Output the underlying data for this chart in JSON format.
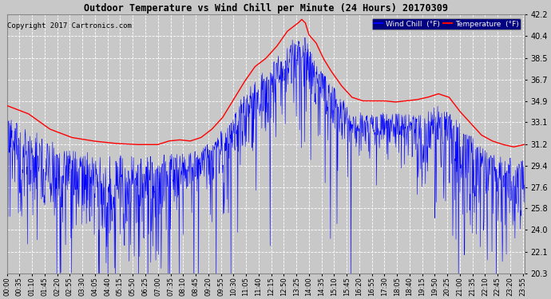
{
  "title": "Outdoor Temperature vs Wind Chill per Minute (24 Hours) 20170309",
  "copyright": "Copyright 2017 Cartronics.com",
  "legend_labels": [
    "Wind Chill  (°F)",
    "Temperature  (°F)"
  ],
  "wind_chill_color": "#0000ff",
  "temp_color": "#ff0000",
  "background_color": "#c8c8c8",
  "plot_bg_color": "#c8c8c8",
  "grid_color": "#ffffff",
  "ylim_min": 20.3,
  "ylim_max": 42.2,
  "yticks": [
    20.3,
    22.1,
    24.0,
    25.8,
    27.6,
    29.4,
    31.2,
    33.1,
    34.9,
    36.7,
    38.5,
    40.4,
    42.2
  ],
  "num_minutes": 1440,
  "seed": 99,
  "temp_keypoints": [
    [
      0,
      34.5
    ],
    [
      60,
      33.8
    ],
    [
      120,
      32.5
    ],
    [
      180,
      31.8
    ],
    [
      240,
      31.5
    ],
    [
      300,
      31.3
    ],
    [
      360,
      31.2
    ],
    [
      420,
      31.2
    ],
    [
      450,
      31.5
    ],
    [
      480,
      31.6
    ],
    [
      510,
      31.5
    ],
    [
      540,
      31.8
    ],
    [
      570,
      32.5
    ],
    [
      600,
      33.5
    ],
    [
      630,
      35.0
    ],
    [
      660,
      36.5
    ],
    [
      690,
      37.8
    ],
    [
      720,
      38.5
    ],
    [
      750,
      39.5
    ],
    [
      780,
      40.8
    ],
    [
      810,
      41.5
    ],
    [
      820,
      41.8
    ],
    [
      830,
      41.5
    ],
    [
      840,
      40.5
    ],
    [
      860,
      39.8
    ],
    [
      880,
      38.5
    ],
    [
      900,
      37.5
    ],
    [
      930,
      36.2
    ],
    [
      960,
      35.2
    ],
    [
      990,
      34.9
    ],
    [
      1020,
      34.9
    ],
    [
      1050,
      34.9
    ],
    [
      1080,
      34.8
    ],
    [
      1110,
      34.9
    ],
    [
      1140,
      35.0
    ],
    [
      1170,
      35.2
    ],
    [
      1200,
      35.5
    ],
    [
      1230,
      35.2
    ],
    [
      1260,
      34.0
    ],
    [
      1290,
      33.0
    ],
    [
      1320,
      32.0
    ],
    [
      1350,
      31.5
    ],
    [
      1380,
      31.2
    ],
    [
      1410,
      31.0
    ],
    [
      1439,
      31.2
    ]
  ]
}
